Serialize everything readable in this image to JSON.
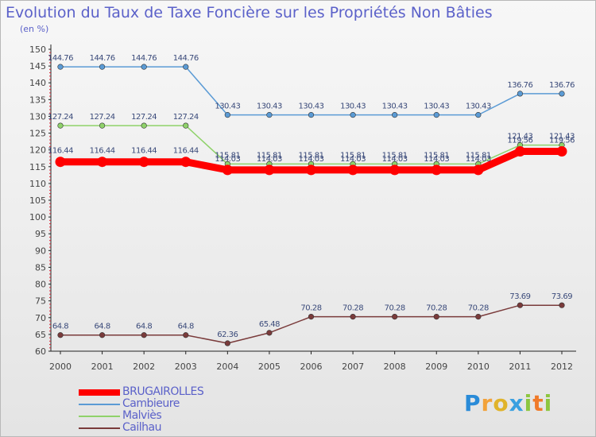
{
  "chart_data": {
    "type": "line",
    "title": "Evolution du Taux de Taxe Foncière sur les Propriétés Non Bâties",
    "ylabel": "(en %)",
    "xlabel": "",
    "categories": [
      "2000",
      "2001",
      "2002",
      "2003",
      "2004",
      "2005",
      "2006",
      "2007",
      "2008",
      "2009",
      "2010",
      "2011",
      "2012"
    ],
    "ylim": [
      60,
      150
    ],
    "yticks": [
      60,
      65,
      70,
      75,
      80,
      85,
      90,
      95,
      100,
      105,
      110,
      115,
      120,
      125,
      130,
      135,
      140,
      145,
      150
    ],
    "grid": false,
    "legend_position": "bottom-left",
    "series": [
      {
        "name": "BRUGAIROLLES",
        "color": "#ff0000",
        "values": [
          116.44,
          116.44,
          116.44,
          116.44,
          114.03,
          114.03,
          114.03,
          114.03,
          114.03,
          114.03,
          114.03,
          119.56,
          119.56
        ],
        "labels": [
          "116.44",
          "116.44",
          "116.44",
          "116.44",
          "114.03",
          "114.03",
          "114.03",
          "114.03",
          "114.03",
          "114.03",
          "114.03",
          "119.56",
          "119.56"
        ]
      },
      {
        "name": "Cambieure",
        "color": "#5b9bd5",
        "values": [
          144.76,
          144.76,
          144.76,
          144.76,
          130.43,
          130.43,
          130.43,
          130.43,
          130.43,
          130.43,
          130.43,
          136.76,
          136.76
        ],
        "labels": [
          "144.76",
          "144.76",
          "144.76",
          "144.76",
          "130.43",
          "130.43",
          "130.43",
          "130.43",
          "130.43",
          "130.43",
          "130.43",
          "136.76",
          "136.76"
        ]
      },
      {
        "name": "Malviès",
        "color": "#8fd26a",
        "values": [
          127.24,
          127.24,
          127.24,
          127.24,
          115.81,
          115.81,
          115.81,
          115.81,
          115.81,
          115.81,
          115.81,
          121.43,
          121.43
        ],
        "labels": [
          "127.24",
          "127.24",
          "127.24",
          "127.24",
          "115.81",
          "115.81",
          "115.81",
          "115.81",
          "115.81",
          "115.81",
          "115.81",
          "121.43",
          "121.43"
        ]
      },
      {
        "name": "Cailhau",
        "color": "#7a3b3b",
        "values": [
          64.8,
          64.8,
          64.8,
          64.8,
          62.36,
          65.48,
          70.28,
          70.28,
          70.28,
          70.28,
          70.28,
          73.69,
          73.69
        ],
        "labels": [
          "64.8",
          "64.8",
          "64.8",
          "64.8",
          "62.36",
          "65.48",
          "70.28",
          "70.28",
          "70.28",
          "70.28",
          "70.28",
          "73.69",
          "73.69"
        ]
      }
    ]
  },
  "brand": {
    "text": "Proxiti",
    "letters": [
      {
        "ch": "P",
        "color": "#2a8bd8"
      },
      {
        "ch": "r",
        "color": "#f2a23a"
      },
      {
        "ch": "o",
        "color": "#e0b32a"
      },
      {
        "ch": "x",
        "color": "#3aa0e0"
      },
      {
        "ch": "i",
        "color": "#8dc63f"
      },
      {
        "ch": "t",
        "color": "#f07a2a"
      },
      {
        "ch": "i",
        "color": "#8dc63f"
      }
    ]
  }
}
